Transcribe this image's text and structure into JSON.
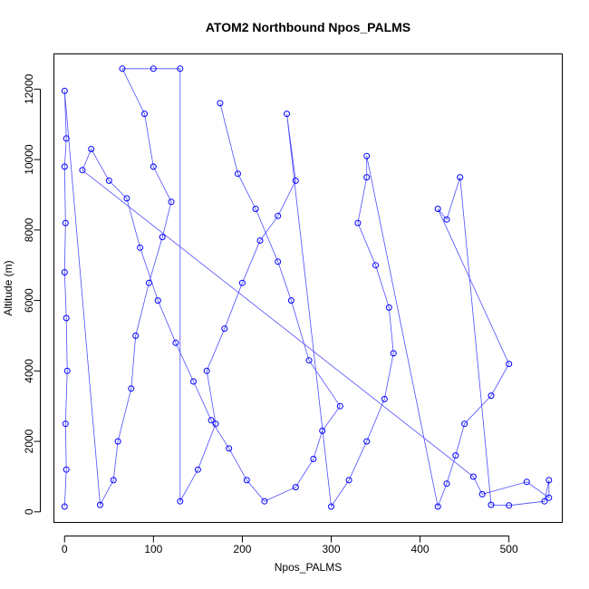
{
  "chart_data": {
    "type": "scatter",
    "title": "ATOM2 Northbound Npos_PALMS",
    "xlabel": "Npos_PALMS",
    "ylabel": "Altitude (m)",
    "xlim": [
      -12,
      560
    ],
    "ylim": [
      -300,
      13000
    ],
    "x_ticks": [
      0,
      100,
      200,
      300,
      400,
      500
    ],
    "y_ticks": [
      0,
      2000,
      4000,
      6000,
      8000,
      10000,
      12000
    ],
    "x_tick_labels": [
      "0",
      "100",
      "200",
      "300",
      "400",
      "500"
    ],
    "y_tick_labels": [
      "0",
      "2000",
      "4000",
      "6000",
      "8000",
      "10000",
      "12000"
    ],
    "grid": false,
    "legend": "none",
    "series_color": "#0000ff",
    "marker": "open-circle",
    "connected": true,
    "series": [
      {
        "points": [
          [
            0,
            150
          ],
          [
            2,
            1200
          ],
          [
            1,
            2500
          ],
          [
            3,
            4000
          ],
          [
            2,
            5500
          ],
          [
            0,
            6800
          ],
          [
            1,
            8200
          ],
          [
            0,
            9800
          ],
          [
            2,
            10600
          ],
          [
            0,
            11950
          ],
          [
            40,
            200
          ],
          [
            55,
            900
          ],
          [
            60,
            2000
          ],
          [
            75,
            3500
          ],
          [
            80,
            5000
          ],
          [
            95,
            6500
          ],
          [
            110,
            7800
          ],
          [
            120,
            8800
          ],
          [
            100,
            9800
          ],
          [
            90,
            11300
          ],
          [
            65,
            12580
          ],
          [
            100,
            12580
          ],
          [
            130,
            12580
          ],
          [
            130,
            300
          ],
          [
            150,
            1200
          ],
          [
            170,
            2500
          ],
          [
            160,
            4000
          ],
          [
            180,
            5200
          ],
          [
            200,
            6500
          ],
          [
            220,
            7700
          ],
          [
            240,
            8400
          ],
          [
            260,
            9400
          ],
          [
            250,
            11300
          ],
          [
            300,
            150
          ],
          [
            320,
            900
          ],
          [
            340,
            2000
          ],
          [
            360,
            3200
          ],
          [
            370,
            4500
          ],
          [
            365,
            5800
          ],
          [
            350,
            7000
          ],
          [
            330,
            8200
          ],
          [
            340,
            9500
          ],
          [
            340,
            10100
          ],
          [
            420,
            150
          ],
          [
            430,
            800
          ],
          [
            440,
            1600
          ],
          [
            450,
            2500
          ],
          [
            480,
            3300
          ],
          [
            500,
            4200
          ],
          [
            420,
            8600
          ],
          [
            430,
            8300
          ],
          [
            445,
            9500
          ],
          [
            480,
            200
          ],
          [
            500,
            180
          ],
          [
            540,
            300
          ],
          [
            545,
            900
          ],
          [
            545,
            400
          ],
          [
            520,
            850
          ],
          [
            470,
            500
          ],
          [
            460,
            1000
          ],
          [
            20,
            9700
          ],
          [
            30,
            10300
          ],
          [
            50,
            9400
          ],
          [
            70,
            8900
          ],
          [
            85,
            7500
          ],
          [
            105,
            6000
          ],
          [
            125,
            4800
          ],
          [
            145,
            3700
          ],
          [
            165,
            2600
          ],
          [
            185,
            1800
          ],
          [
            205,
            900
          ],
          [
            225,
            300
          ],
          [
            260,
            700
          ],
          [
            280,
            1500
          ],
          [
            290,
            2300
          ],
          [
            310,
            3000
          ],
          [
            275,
            4300
          ],
          [
            255,
            6000
          ],
          [
            240,
            7100
          ],
          [
            215,
            8600
          ],
          [
            195,
            9600
          ],
          [
            175,
            11600
          ]
        ]
      }
    ]
  }
}
